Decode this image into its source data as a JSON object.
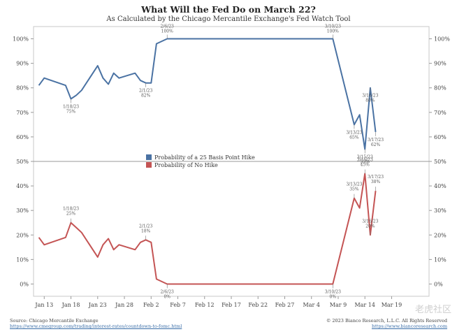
{
  "title": "What Will the Fed Do on March 22?",
  "subtitle": "As Calculated by the Chicago Mercantile Exchange's Fed Watch Tool",
  "source_left_label": "Source: Chicago Mercantile Exchange",
  "source_left_url": "https://www.cmegroup.com/trading/interest-rates/countdown-to-fomc.html",
  "source_right_label": "© 2023 Bianco Research, L.L.C. All Rights Reserved",
  "source_right_url": "https://www.biancoresearch.com",
  "watermark": "老虎社区",
  "chart_data": {
    "type": "line",
    "ylim": [
      -5,
      105
    ],
    "yticks": [
      0,
      10,
      20,
      30,
      40,
      50,
      60,
      70,
      80,
      90,
      100
    ],
    "ytick_labels": [
      "0%",
      "10%",
      "20%",
      "30%",
      "40%",
      "50%",
      "60%",
      "70%",
      "80%",
      "90%",
      "100%"
    ],
    "xlim": [
      -1,
      73
    ],
    "xticks": [
      {
        "label": "Jan 13",
        "day": 1
      },
      {
        "label": "Jan 18",
        "day": 6
      },
      {
        "label": "Jan 23",
        "day": 11
      },
      {
        "label": "Jan 28",
        "day": 16
      },
      {
        "label": "Feb 2",
        "day": 21
      },
      {
        "label": "Feb 7",
        "day": 26
      },
      {
        "label": "Feb 12",
        "day": 31
      },
      {
        "label": "Feb 17",
        "day": 36
      },
      {
        "label": "Feb 22",
        "day": 41
      },
      {
        "label": "Feb 27",
        "day": 46
      },
      {
        "label": "Mar 4",
        "day": 51
      },
      {
        "label": "Mar 9",
        "day": 56
      },
      {
        "label": "Mar 14",
        "day": 61
      },
      {
        "label": "Mar 19",
        "day": 66
      }
    ],
    "reference_line": 50,
    "legend": [
      "Probability of a 25 Basis Point Hike",
      "Probability of No Hike"
    ],
    "series": [
      {
        "name": "Probability of a 25 Basis Point Hike",
        "color": "#4a72a3",
        "points": [
          [
            0,
            81
          ],
          [
            1,
            84
          ],
          [
            5,
            81
          ],
          [
            6,
            75.5
          ],
          [
            7,
            77
          ],
          [
            8,
            79
          ],
          [
            11,
            89
          ],
          [
            12,
            84
          ],
          [
            13,
            81.5
          ],
          [
            14,
            86
          ],
          [
            15,
            84
          ],
          [
            18,
            86
          ],
          [
            19,
            83
          ],
          [
            20,
            82
          ],
          [
            21,
            82
          ],
          [
            22,
            98
          ],
          [
            24,
            100
          ],
          [
            55,
            100
          ],
          [
            59,
            65
          ],
          [
            60,
            69
          ],
          [
            61,
            55
          ],
          [
            62,
            80
          ],
          [
            63,
            62
          ]
        ],
        "annotations": [
          {
            "date": "1/18/23",
            "value": "75%",
            "x": 6,
            "y": 75.5
          },
          {
            "date": "2/1/23",
            "value": "82%",
            "x": 20,
            "y": 82
          },
          {
            "date": "2/6/23",
            "value": "100%",
            "x": 24,
            "y": 100
          },
          {
            "date": "3/10/23",
            "value": "100%",
            "x": 55,
            "y": 100
          },
          {
            "date": "3/13/23",
            "value": "65%",
            "x": 59,
            "y": 65
          },
          {
            "date": "3/15/23",
            "value": "55%",
            "x": 61,
            "y": 55
          },
          {
            "date": "3/16/23",
            "value": "80%",
            "x": 62,
            "y": 80
          },
          {
            "date": "3/17/23",
            "value": "62%",
            "x": 63,
            "y": 62
          }
        ]
      },
      {
        "name": "Probability of No Hike",
        "color": "#c45454",
        "points": [
          [
            0,
            19
          ],
          [
            1,
            16
          ],
          [
            5,
            19
          ],
          [
            6,
            25
          ],
          [
            7,
            23
          ],
          [
            8,
            21
          ],
          [
            11,
            11
          ],
          [
            12,
            16
          ],
          [
            13,
            18.5
          ],
          [
            14,
            14
          ],
          [
            15,
            16
          ],
          [
            18,
            14
          ],
          [
            19,
            17
          ],
          [
            20,
            18
          ],
          [
            21,
            17
          ],
          [
            22,
            2
          ],
          [
            24,
            0
          ],
          [
            55,
            0
          ],
          [
            59,
            35
          ],
          [
            60,
            31
          ],
          [
            61,
            45
          ],
          [
            62,
            20
          ],
          [
            63,
            38
          ]
        ],
        "annotations": [
          {
            "date": "1/18/23",
            "value": "25%",
            "x": 6,
            "y": 25
          },
          {
            "date": "2/1/23",
            "value": "18%",
            "x": 20,
            "y": 18
          },
          {
            "date": "2/6/23",
            "value": "0%",
            "x": 24,
            "y": 0
          },
          {
            "date": "3/10/23",
            "value": "0%",
            "x": 55,
            "y": 0
          },
          {
            "date": "3/13/23",
            "value": "35%",
            "x": 59,
            "y": 35
          },
          {
            "date": "3/15/23",
            "value": "45%",
            "x": 61,
            "y": 45
          },
          {
            "date": "3/16/23",
            "value": "20%",
            "x": 62,
            "y": 20
          },
          {
            "date": "3/17/23",
            "value": "38%",
            "x": 63,
            "y": 38
          }
        ]
      }
    ]
  }
}
